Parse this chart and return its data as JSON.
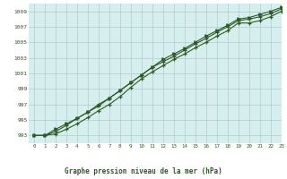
{
  "title": "Graphe pression niveau de la mer (hPa)",
  "plot_bg": "#d6eeee",
  "fig_bg": "#ffffff",
  "label_bg": "#d6eeee",
  "grid_color": "#b0cccc",
  "line_color": "#2d5a27",
  "xlim": [
    -0.5,
    23
  ],
  "ylim": [
    992.0,
    1010.0
  ],
  "yticks": [
    993,
    995,
    997,
    999,
    1001,
    1003,
    1005,
    1007,
    1009
  ],
  "xticks": [
    0,
    1,
    2,
    3,
    4,
    5,
    6,
    7,
    8,
    9,
    10,
    11,
    12,
    13,
    14,
    15,
    16,
    17,
    18,
    19,
    20,
    21,
    22,
    23
  ],
  "series1": [
    993.0,
    993.0,
    993.2,
    993.8,
    994.5,
    995.3,
    996.2,
    997.0,
    998.0,
    999.2,
    1000.3,
    1001.2,
    1002.0,
    1002.8,
    1003.5,
    1004.3,
    1005.0,
    1005.8,
    1006.5,
    1007.5,
    1007.5,
    1007.8,
    1008.3,
    1009.0
  ],
  "series2": [
    993.0,
    993.0,
    993.5,
    994.3,
    995.2,
    996.0,
    997.0,
    997.8,
    998.8,
    999.8,
    1000.8,
    1001.8,
    1002.5,
    1003.2,
    1004.0,
    1004.8,
    1005.5,
    1006.3,
    1007.0,
    1007.8,
    1008.0,
    1008.3,
    1008.7,
    1009.3
  ],
  "series3": [
    993.0,
    993.0,
    993.8,
    994.5,
    995.2,
    996.0,
    996.8,
    997.8,
    998.8,
    999.8,
    1000.8,
    1001.8,
    1002.8,
    1003.5,
    1004.2,
    1005.0,
    1005.8,
    1006.5,
    1007.2,
    1008.0,
    1008.2,
    1008.6,
    1009.0,
    1009.5
  ]
}
